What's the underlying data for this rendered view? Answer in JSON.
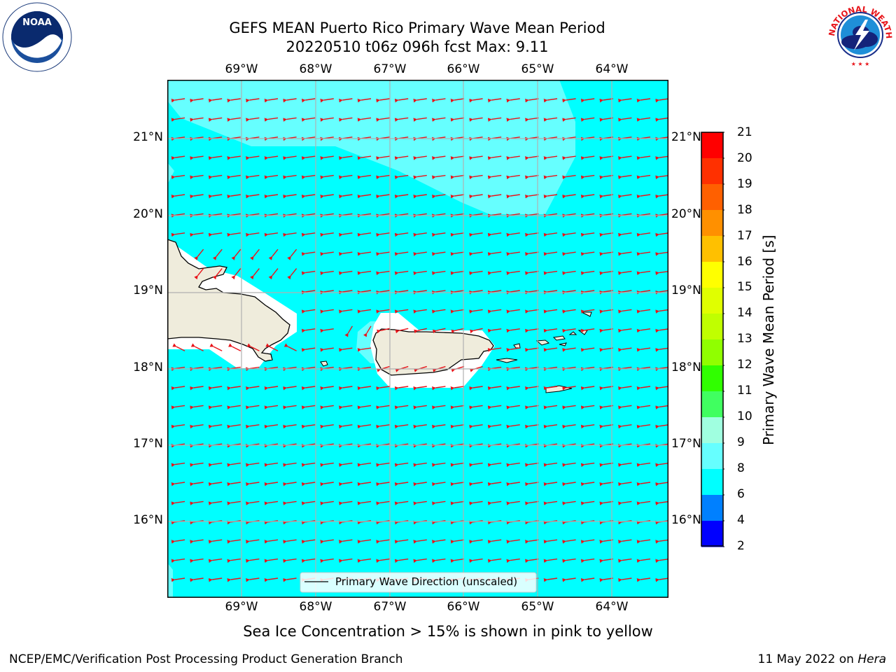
{
  "title": {
    "line1": "GEFS MEAN Puerto Rico Primary Wave Mean Period",
    "line2": "20220510 t06z 096h fcst   Max: 9.11"
  },
  "map": {
    "lon_labels": [
      "69°W",
      "68°W",
      "67°W",
      "66°W",
      "65°W",
      "64°W"
    ],
    "lat_labels": [
      "21°N",
      "20°N",
      "19°N",
      "18°N",
      "17°N",
      "16°N"
    ],
    "legend_label": "Primary Wave Direction (unscaled)",
    "ocean_color": "#00ffff",
    "light_shade_color": "#66ffff",
    "land_color": "#efecdc",
    "arrow_color": "#e8141a"
  },
  "colorbar": {
    "label": "Primary Wave Mean Period [s]",
    "ticks": [
      "21",
      "20",
      "19",
      "18",
      "17",
      "16",
      "15",
      "14",
      "13",
      "12",
      "11",
      "10",
      "9",
      "8",
      "6",
      "4",
      "2"
    ],
    "colors": [
      "#ff0000",
      "#ff3000",
      "#ff6000",
      "#ff9000",
      "#ffc000",
      "#ffff00",
      "#e0ff00",
      "#c0ff00",
      "#90ff00",
      "#30ff00",
      "#40ff60",
      "#a0ffe0",
      "#66ffff",
      "#00ffff",
      "#0080ff",
      "#0000ff"
    ]
  },
  "caption": "Sea Ice Concentration > 15% is shown in pink to yellow",
  "footer": {
    "left": "NCEP/EMC/Verification Post Processing Product Generation Branch",
    "right_prefix": "11 May 2022 on ",
    "right_host": "Hera"
  },
  "logos": {
    "noaa_text": "NOAA",
    "nws_text": "NATIONAL WEATHER SERVICE"
  }
}
